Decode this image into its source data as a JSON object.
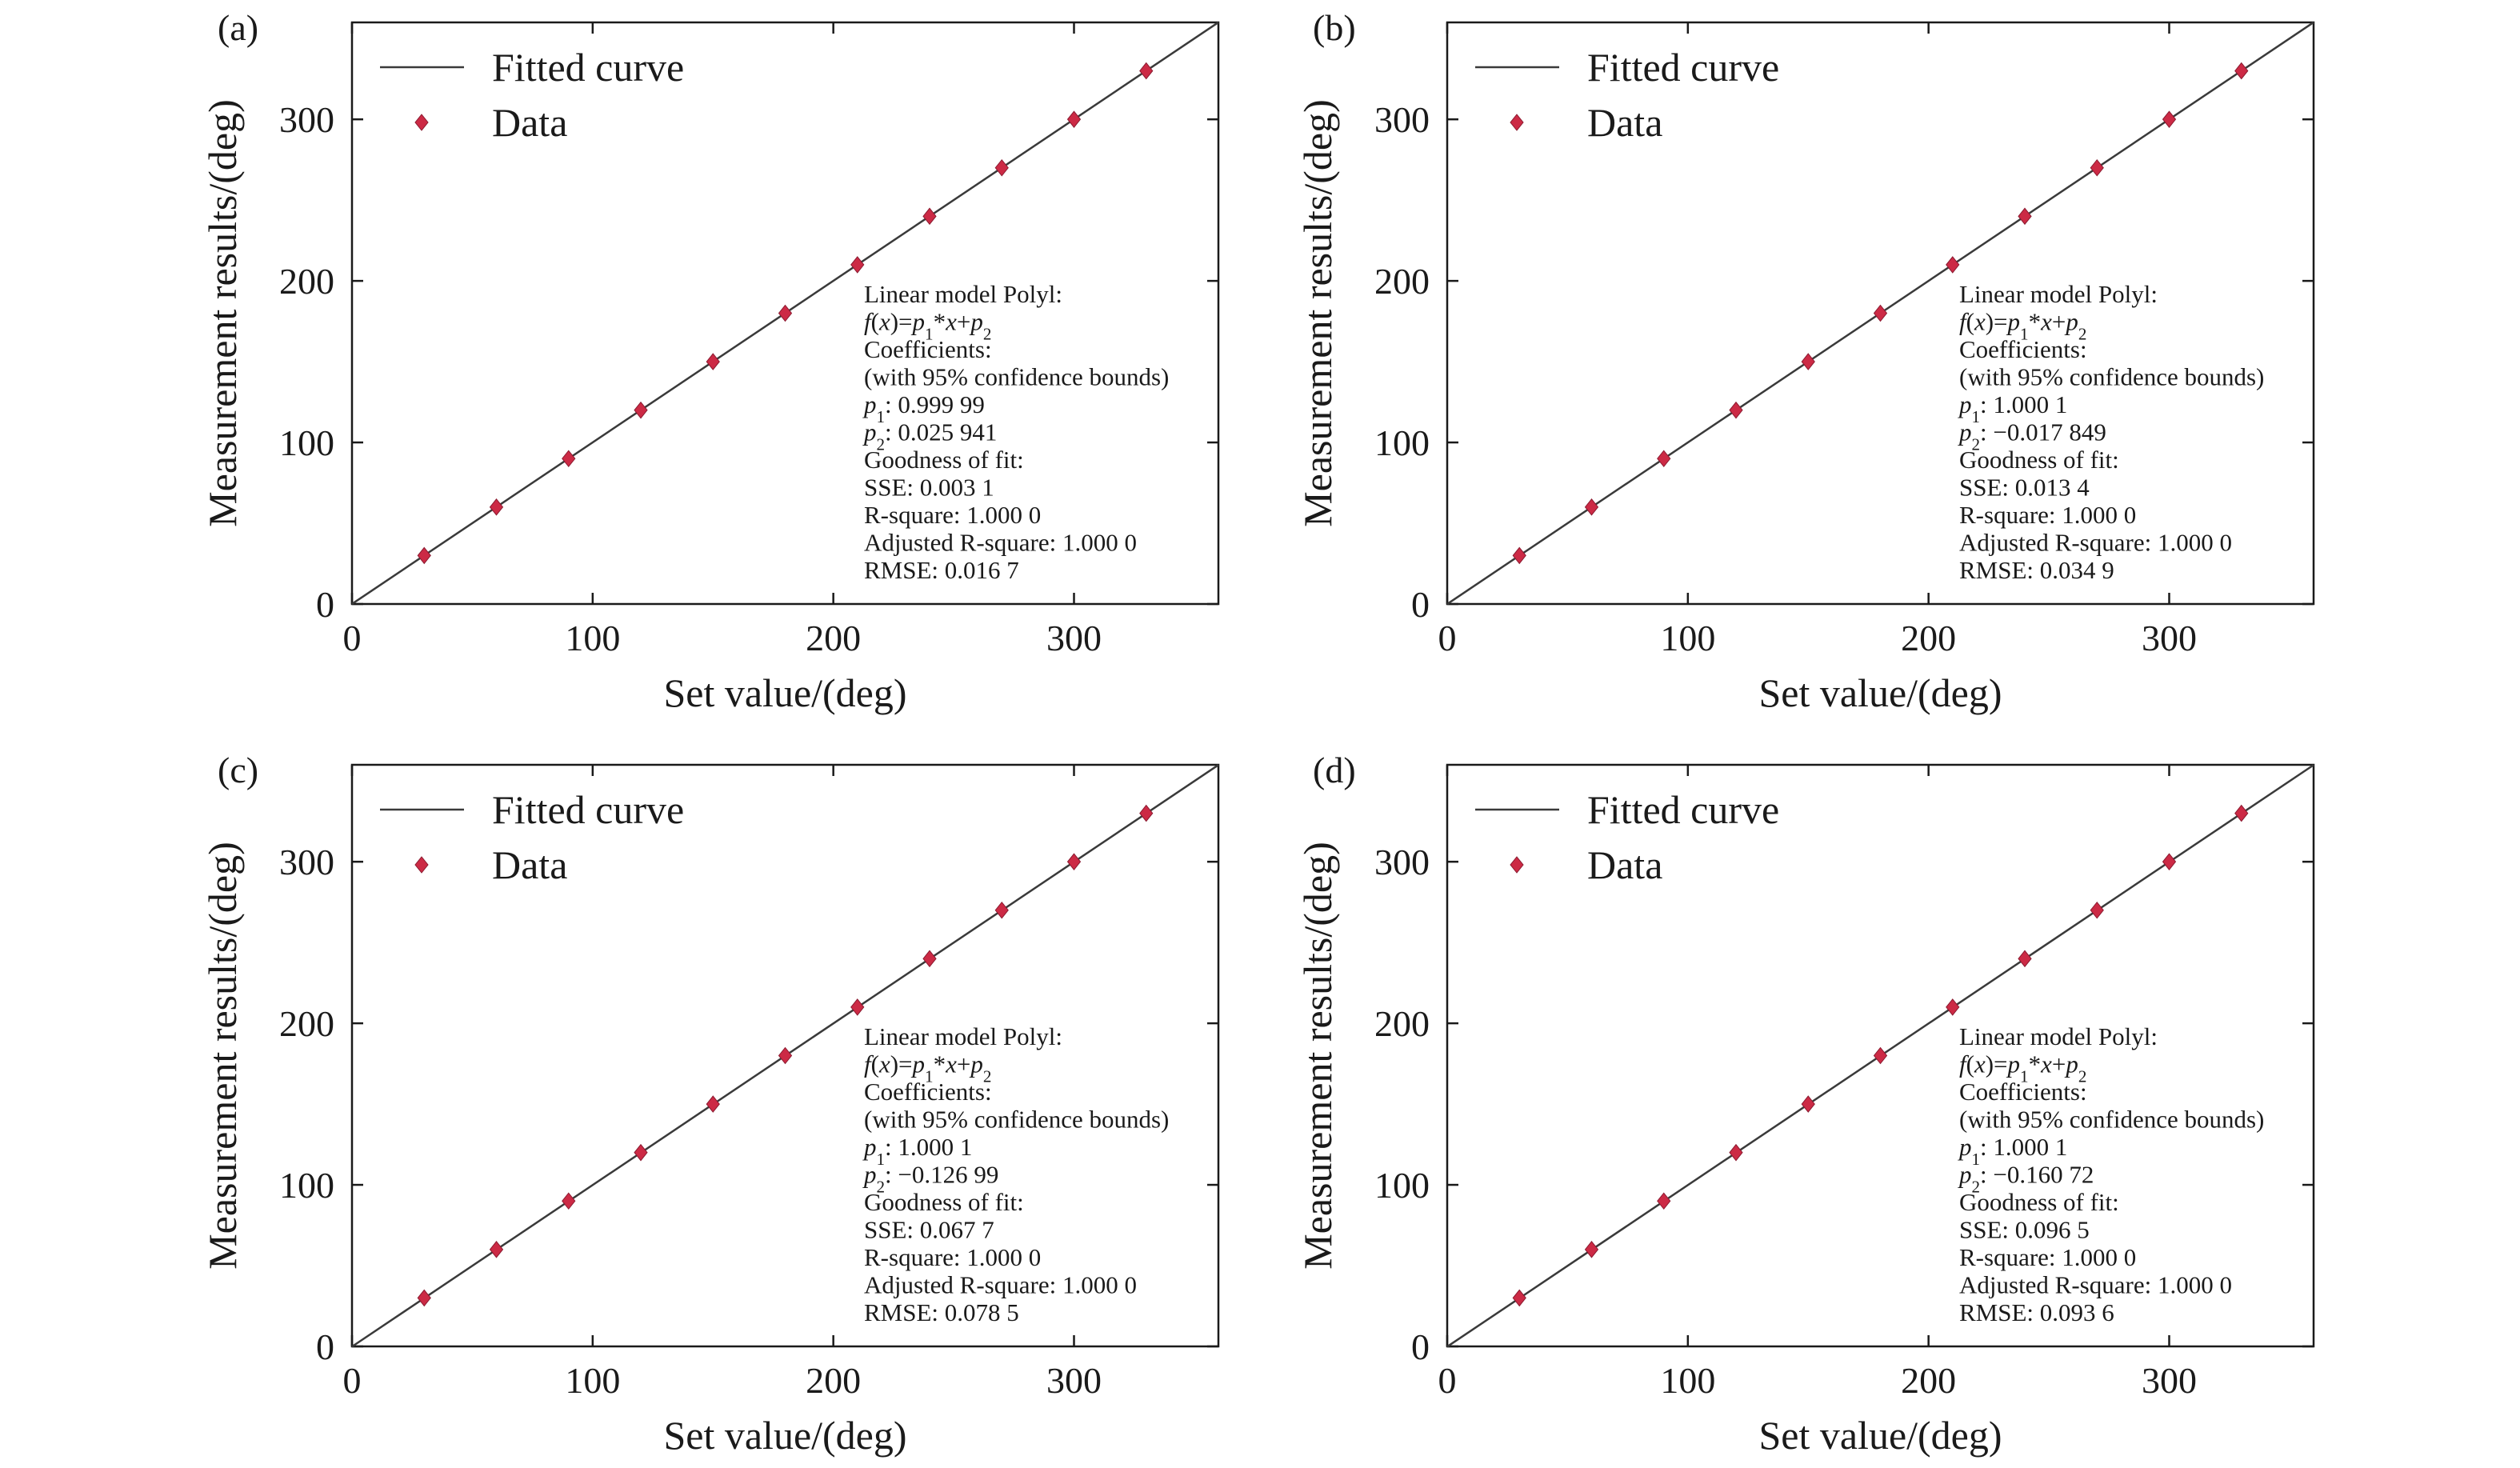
{
  "chart_data": [
    {
      "type": "scatter",
      "panel_label": "(a)",
      "xlabel": "Set value/(deg)",
      "ylabel": "Measurement results/(deg)",
      "xlim": [
        0,
        360
      ],
      "ylim": [
        0,
        360
      ],
      "xticks": [
        "0",
        "100",
        "200",
        "300"
      ],
      "yticks": [
        "0",
        "100",
        "200",
        "300"
      ],
      "grid": false,
      "legend_position": "top-left",
      "series": [
        {
          "name": "Fitted curve",
          "kind": "line",
          "slope": 0.99999,
          "intercept": 0.025941
        },
        {
          "name": "Data",
          "kind": "points",
          "x": [
            30,
            60,
            90,
            120,
            150,
            180,
            210,
            240,
            270,
            300,
            330
          ],
          "y": [
            30,
            60,
            90,
            120,
            150,
            180,
            210,
            240,
            270,
            300,
            330
          ]
        }
      ],
      "annotation": {
        "model": "Linear model Polyl:",
        "formula": "f(x)=p1*x+p2",
        "coefficients": "Coefficients:",
        "bounds": "(with 95% confidence bounds)",
        "p1_label": "p1",
        "p1_value": ": 0.999 99",
        "p2_label": "p2",
        "p2_value": ": 0.025 941",
        "gof": "Goodness of fit:",
        "sse": "SSE: 0.003 1",
        "rsq": "R-square: 1.000 0",
        "adjrsq": "Adjusted R-square: 1.000 0",
        "rmse": "RMSE: 0.016 7"
      }
    },
    {
      "type": "scatter",
      "panel_label": "(b)",
      "xlabel": "Set value/(deg)",
      "ylabel": "Measurement results/(deg)",
      "xlim": [
        0,
        360
      ],
      "ylim": [
        0,
        360
      ],
      "xticks": [
        "0",
        "100",
        "200",
        "300"
      ],
      "yticks": [
        "0",
        "100",
        "200",
        "300"
      ],
      "grid": false,
      "legend_position": "top-left",
      "series": [
        {
          "name": "Fitted curve",
          "kind": "line",
          "slope": 1.0001,
          "intercept": -0.017849
        },
        {
          "name": "Data",
          "kind": "points",
          "x": [
            30,
            60,
            90,
            120,
            150,
            180,
            210,
            240,
            270,
            300,
            330
          ],
          "y": [
            30,
            60,
            90,
            120,
            150,
            180,
            210,
            240,
            270,
            300,
            330
          ]
        }
      ],
      "annotation": {
        "model": "Linear model Polyl:",
        "formula": "f(x)=p1*x+p2",
        "coefficients": "Coefficients:",
        "bounds": "(with 95% confidence bounds)",
        "p1_label": "p1",
        "p1_value": ": 1.000 1",
        "p2_label": "p2",
        "p2_value": ": −0.017 849",
        "gof": "Goodness of fit:",
        "sse": "SSE: 0.013 4",
        "rsq": "R-square: 1.000 0",
        "adjrsq": "Adjusted R-square: 1.000 0",
        "rmse": "RMSE: 0.034 9"
      }
    },
    {
      "type": "scatter",
      "panel_label": "(c)",
      "xlabel": "Set value/(deg)",
      "ylabel": "Measurement results/(deg)",
      "xlim": [
        0,
        360
      ],
      "ylim": [
        0,
        360
      ],
      "xticks": [
        "0",
        "100",
        "200",
        "300"
      ],
      "yticks": [
        "0",
        "100",
        "200",
        "300"
      ],
      "grid": false,
      "legend_position": "top-left",
      "series": [
        {
          "name": "Fitted curve",
          "kind": "line",
          "slope": 1.0001,
          "intercept": -0.12699
        },
        {
          "name": "Data",
          "kind": "points",
          "x": [
            30,
            60,
            90,
            120,
            150,
            180,
            210,
            240,
            270,
            300,
            330
          ],
          "y": [
            30,
            60,
            90,
            120,
            150,
            180,
            210,
            240,
            270,
            300,
            330
          ]
        }
      ],
      "annotation": {
        "model": "Linear model Polyl:",
        "formula": "f(x)=p1*x+p2",
        "coefficients": "Coefficients:",
        "bounds": "(with 95% confidence bounds)",
        "p1_label": "p1",
        "p1_value": ": 1.000 1",
        "p2_label": "p2",
        "p2_value": ": −0.126 99",
        "gof": "Goodness of fit:",
        "sse": "SSE: 0.067 7",
        "rsq": "R-square: 1.000 0",
        "adjrsq": "Adjusted R-square: 1.000 0",
        "rmse": "RMSE: 0.078 5"
      }
    },
    {
      "type": "scatter",
      "panel_label": "(d)",
      "xlabel": "Set value/(deg)",
      "ylabel": "Measurement results/(deg)",
      "xlim": [
        0,
        360
      ],
      "ylim": [
        0,
        360
      ],
      "xticks": [
        "0",
        "100",
        "200",
        "300"
      ],
      "yticks": [
        "0",
        "100",
        "200",
        "300"
      ],
      "grid": false,
      "legend_position": "top-left",
      "series": [
        {
          "name": "Fitted curve",
          "kind": "line",
          "slope": 1.0001,
          "intercept": -0.16072
        },
        {
          "name": "Data",
          "kind": "points",
          "x": [
            30,
            60,
            90,
            120,
            150,
            180,
            210,
            240,
            270,
            300,
            330
          ],
          "y": [
            30,
            60,
            90,
            120,
            150,
            180,
            210,
            240,
            270,
            300,
            330
          ]
        }
      ],
      "annotation": {
        "model": "Linear model Polyl:",
        "formula": "f(x)=p1*x+p2",
        "coefficients": "Coefficients:",
        "bounds": "(with 95% confidence bounds)",
        "p1_label": "p1",
        "p1_value": ": 1.000 1",
        "p2_label": "p2",
        "p2_value": ": −0.160 72",
        "gof": "Goodness of fit:",
        "sse": "SSE: 0.096 5",
        "rsq": "R-square: 1.000 0",
        "adjrsq": "Adjusted R-square: 1.000 0",
        "rmse": "RMSE: 0.093 6"
      }
    }
  ],
  "colors": {
    "axis": "#1a1a1a",
    "fit_line": "#3a3a3a",
    "marker": "#cc2a45"
  }
}
